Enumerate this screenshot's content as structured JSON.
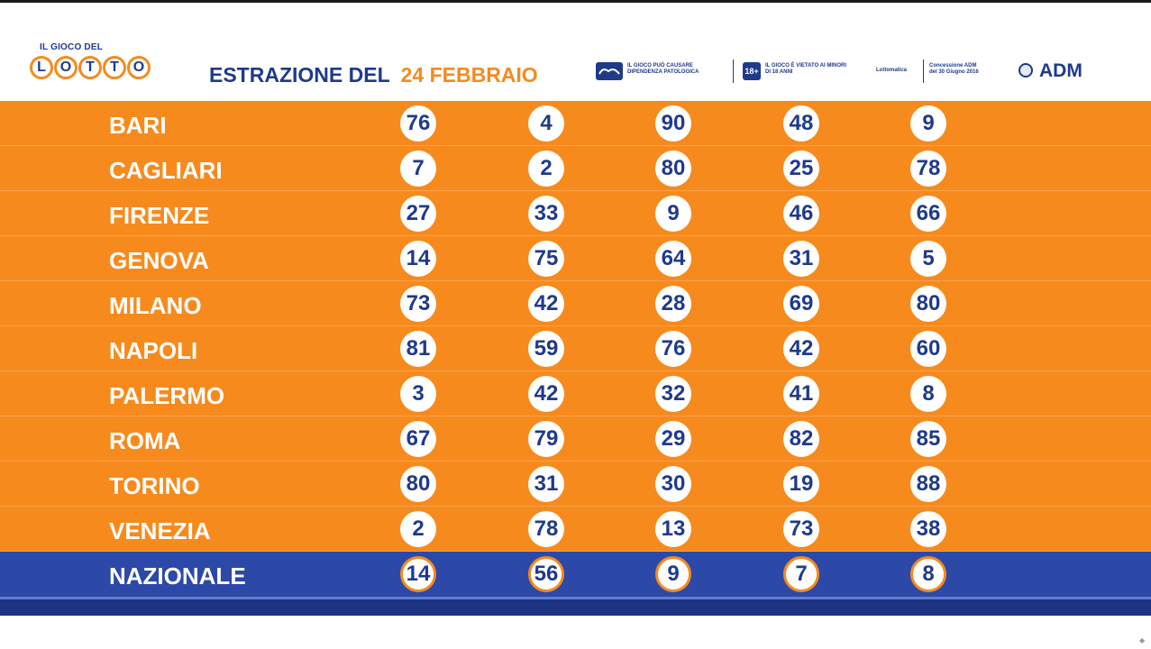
{
  "header": {
    "logo_top": "IL GIOCO DEL",
    "logo_letters": [
      "L",
      "O",
      "T",
      "T",
      "O"
    ],
    "title": "ESTRAZIONE DEL",
    "date": "24 FEBBRAIO",
    "notice_addiction": "IL GIOCO PUÒ CAUSARE DIPENDENZA PATOLOGICA",
    "age_badge": "18+",
    "notice_minors": "IL GIOCO È VIETATO AI MINORI DI 18 ANNI",
    "brand_left": "Lottomatica",
    "concession": "Concessione ADM del 30 Giugno 2016",
    "adm": "ADM"
  },
  "draws": [
    {
      "city": "BARI",
      "numbers": [
        "76",
        "4",
        "90",
        "48",
        "9"
      ]
    },
    {
      "city": "CAGLIARI",
      "numbers": [
        "7",
        "2",
        "80",
        "25",
        "78"
      ]
    },
    {
      "city": "FIRENZE",
      "numbers": [
        "27",
        "33",
        "9",
        "46",
        "66"
      ]
    },
    {
      "city": "GENOVA",
      "numbers": [
        "14",
        "75",
        "64",
        "31",
        "5"
      ]
    },
    {
      "city": "MILANO",
      "numbers": [
        "73",
        "42",
        "28",
        "69",
        "80"
      ]
    },
    {
      "city": "NAPOLI",
      "numbers": [
        "81",
        "59",
        "76",
        "42",
        "60"
      ]
    },
    {
      "city": "PALERMO",
      "numbers": [
        "3",
        "42",
        "32",
        "41",
        "8"
      ]
    },
    {
      "city": "ROMA",
      "numbers": [
        "67",
        "79",
        "29",
        "82",
        "85"
      ]
    },
    {
      "city": "TORINO",
      "numbers": [
        "80",
        "31",
        "30",
        "19",
        "88"
      ]
    },
    {
      "city": "VENEZIA",
      "numbers": [
        "2",
        "78",
        "13",
        "73",
        "38"
      ]
    },
    {
      "city": "NAZIONALE",
      "numbers": [
        "14",
        "56",
        "9",
        "7",
        "8"
      ]
    }
  ],
  "colors": {
    "row_orange": "#f78a1d",
    "nazionale_blue": "#2c49a8",
    "number_blue": "#1f3a8a",
    "accent_orange": "#f58a1f"
  }
}
